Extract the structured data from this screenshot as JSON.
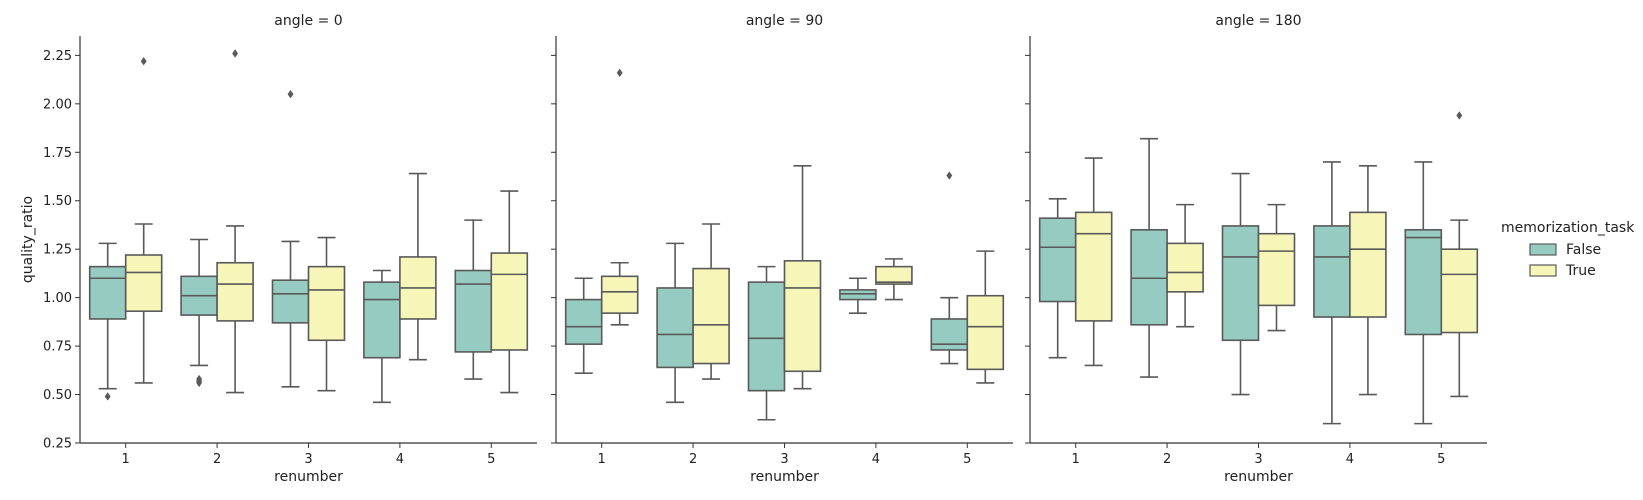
{
  "chart_data": {
    "type": "box",
    "panel_var": "angle",
    "xlabel": "renumber",
    "ylabel": "quality_ratio",
    "ylim": [
      0.25,
      2.35
    ],
    "yticks": [
      "0.25",
      "0.50",
      "0.75",
      "1.00",
      "1.25",
      "1.50",
      "1.75",
      "2.00",
      "2.25"
    ],
    "categories": [
      "1",
      "2",
      "3",
      "4",
      "5"
    ],
    "colors": {
      "False": "#96cbc1",
      "True": "#f6f6b8",
      "edge": "#595959",
      "axis": "#333333"
    },
    "legend": {
      "title": "memorization_task",
      "placement": "right",
      "entries": [
        "False",
        "True"
      ]
    },
    "panels": [
      {
        "title": "angle = 0",
        "series": [
          {
            "name": "False",
            "boxes": [
              {
                "whislo": 0.53,
                "q1": 0.89,
                "med": 1.1,
                "q3": 1.16,
                "whishi": 1.28,
                "fliers": [
                  0.49
                ]
              },
              {
                "whislo": 0.65,
                "q1": 0.91,
                "med": 1.01,
                "q3": 1.11,
                "whishi": 1.3,
                "fliers": [
                  0.56,
                  0.57,
                  0.58
                ]
              },
              {
                "whislo": 0.54,
                "q1": 0.87,
                "med": 1.02,
                "q3": 1.09,
                "whishi": 1.29,
                "fliers": [
                  2.05
                ]
              },
              {
                "whislo": 0.46,
                "q1": 0.69,
                "med": 0.99,
                "q3": 1.08,
                "whishi": 1.14,
                "fliers": []
              },
              {
                "whislo": 0.58,
                "q1": 0.72,
                "med": 1.07,
                "q3": 1.14,
                "whishi": 1.4,
                "fliers": []
              }
            ]
          },
          {
            "name": "True",
            "boxes": [
              {
                "whislo": 0.56,
                "q1": 0.93,
                "med": 1.13,
                "q3": 1.22,
                "whishi": 1.38,
                "fliers": [
                  2.22
                ]
              },
              {
                "whislo": 0.51,
                "q1": 0.88,
                "med": 1.07,
                "q3": 1.18,
                "whishi": 1.37,
                "fliers": [
                  2.26
                ]
              },
              {
                "whislo": 0.52,
                "q1": 0.78,
                "med": 1.04,
                "q3": 1.16,
                "whishi": 1.31,
                "fliers": []
              },
              {
                "whislo": 0.68,
                "q1": 0.89,
                "med": 1.05,
                "q3": 1.21,
                "whishi": 1.64,
                "fliers": []
              },
              {
                "whislo": 0.51,
                "q1": 0.73,
                "med": 1.12,
                "q3": 1.23,
                "whishi": 1.55,
                "fliers": []
              }
            ]
          }
        ]
      },
      {
        "title": "angle = 90",
        "series": [
          {
            "name": "False",
            "boxes": [
              {
                "whislo": 0.61,
                "q1": 0.76,
                "med": 0.85,
                "q3": 0.99,
                "whishi": 1.1,
                "fliers": []
              },
              {
                "whislo": 0.46,
                "q1": 0.64,
                "med": 0.81,
                "q3": 1.05,
                "whishi": 1.28,
                "fliers": []
              },
              {
                "whislo": 0.37,
                "q1": 0.52,
                "med": 0.79,
                "q3": 1.08,
                "whishi": 1.16,
                "fliers": []
              },
              {
                "whislo": 0.92,
                "q1": 0.99,
                "med": 1.02,
                "q3": 1.04,
                "whishi": 1.1,
                "fliers": []
              },
              {
                "whislo": 0.66,
                "q1": 0.73,
                "med": 0.76,
                "q3": 0.89,
                "whishi": 1.0,
                "fliers": [
                  1.63
                ]
              }
            ]
          },
          {
            "name": "True",
            "boxes": [
              {
                "whislo": 0.86,
                "q1": 0.92,
                "med": 1.03,
                "q3": 1.11,
                "whishi": 1.18,
                "fliers": [
                  2.16
                ]
              },
              {
                "whislo": 0.58,
                "q1": 0.66,
                "med": 0.86,
                "q3": 1.15,
                "whishi": 1.38,
                "fliers": []
              },
              {
                "whislo": 0.53,
                "q1": 0.62,
                "med": 1.05,
                "q3": 1.19,
                "whishi": 1.68,
                "fliers": []
              },
              {
                "whislo": 0.99,
                "q1": 1.07,
                "med": 1.08,
                "q3": 1.16,
                "whishi": 1.2,
                "fliers": []
              },
              {
                "whislo": 0.56,
                "q1": 0.63,
                "med": 0.85,
                "q3": 1.01,
                "whishi": 1.24,
                "fliers": []
              }
            ]
          }
        ]
      },
      {
        "title": "angle = 180",
        "series": [
          {
            "name": "False",
            "boxes": [
              {
                "whislo": 0.69,
                "q1": 0.98,
                "med": 1.26,
                "q3": 1.41,
                "whishi": 1.51,
                "fliers": []
              },
              {
                "whislo": 0.59,
                "q1": 0.86,
                "med": 1.1,
                "q3": 1.35,
                "whishi": 1.82,
                "fliers": []
              },
              {
                "whislo": 0.5,
                "q1": 0.78,
                "med": 1.21,
                "q3": 1.37,
                "whishi": 1.64,
                "fliers": []
              },
              {
                "whislo": 0.35,
                "q1": 0.9,
                "med": 1.21,
                "q3": 1.37,
                "whishi": 1.7,
                "fliers": []
              },
              {
                "whislo": 0.35,
                "q1": 0.81,
                "med": 1.31,
                "q3": 1.35,
                "whishi": 1.7,
                "fliers": []
              }
            ]
          },
          {
            "name": "True",
            "boxes": [
              {
                "whislo": 0.65,
                "q1": 0.88,
                "med": 1.33,
                "q3": 1.44,
                "whishi": 1.72,
                "fliers": []
              },
              {
                "whislo": 0.85,
                "q1": 1.03,
                "med": 1.13,
                "q3": 1.28,
                "whishi": 1.48,
                "fliers": []
              },
              {
                "whislo": 0.83,
                "q1": 0.96,
                "med": 1.24,
                "q3": 1.33,
                "whishi": 1.48,
                "fliers": []
              },
              {
                "whislo": 0.5,
                "q1": 0.9,
                "med": 1.25,
                "q3": 1.44,
                "whishi": 1.68,
                "fliers": []
              },
              {
                "whislo": 0.49,
                "q1": 0.82,
                "med": 1.12,
                "q3": 1.25,
                "whishi": 1.4,
                "fliers": [
                  1.94
                ]
              }
            ]
          }
        ]
      }
    ]
  }
}
